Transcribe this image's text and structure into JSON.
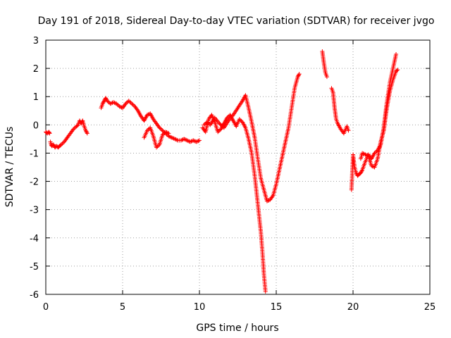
{
  "chart_data": {
    "type": "scatter",
    "title": "Day 191 of 2018, Sidereal Day-to-day VTEC variation (SDTVAR) for receiver jvgo",
    "xlabel": "GPS time / hours",
    "ylabel": "SDTVAR / TECUs",
    "xlim": [
      0,
      25
    ],
    "ylim": [
      -6,
      3
    ],
    "xticks": [
      0,
      5,
      10,
      15,
      20,
      25
    ],
    "yticks": [
      -6,
      -5,
      -4,
      -3,
      -2,
      -1,
      0,
      1,
      2,
      3
    ],
    "xtick_labels": [
      "0",
      "5",
      "10",
      "15",
      "20",
      "25"
    ],
    "ytick_labels": [
      "-6",
      "-5",
      "-4",
      "-3",
      "-2",
      "-1",
      "0",
      "1",
      "2",
      "3"
    ],
    "grid": true,
    "marker": "+",
    "color": "#ff0000",
    "series": [
      {
        "name": "seg1",
        "x": [
          0.0,
          0.1,
          0.2,
          0.25
        ],
        "y": [
          -0.25,
          -0.3,
          -0.25,
          -0.3
        ]
      },
      {
        "name": "seg2",
        "x": [
          0.3,
          0.35,
          0.4,
          0.5,
          0.6,
          0.7,
          0.8,
          0.9,
          1.0,
          1.2,
          1.4,
          1.6,
          1.8,
          2.0,
          2.1,
          2.2,
          2.3,
          2.4,
          2.5,
          2.6,
          2.7
        ],
        "y": [
          -0.6,
          -0.7,
          -0.75,
          -0.7,
          -0.8,
          -0.75,
          -0.8,
          -0.75,
          -0.7,
          -0.6,
          -0.45,
          -0.3,
          -0.15,
          -0.05,
          0.0,
          0.15,
          0.05,
          0.15,
          -0.05,
          -0.2,
          -0.3
        ]
      },
      {
        "name": "seg3",
        "x": [
          3.6,
          3.7,
          3.8,
          3.9,
          4.0,
          4.2,
          4.4,
          4.6,
          4.8,
          5.0,
          5.2,
          5.4,
          5.6,
          5.8,
          6.0,
          6.2,
          6.4,
          6.6,
          6.8,
          7.0,
          7.2,
          7.4,
          7.6,
          7.8,
          8.0,
          8.2,
          8.4,
          8.6,
          8.8,
          9.0,
          9.2,
          9.4,
          9.6,
          9.8,
          10.0
        ],
        "y": [
          0.6,
          0.75,
          0.85,
          0.95,
          0.85,
          0.75,
          0.8,
          0.75,
          0.65,
          0.6,
          0.75,
          0.85,
          0.75,
          0.65,
          0.5,
          0.3,
          0.15,
          0.35,
          0.4,
          0.2,
          0.05,
          -0.1,
          -0.2,
          -0.3,
          -0.4,
          -0.45,
          -0.5,
          -0.55,
          -0.55,
          -0.5,
          -0.55,
          -0.6,
          -0.55,
          -0.6,
          -0.55
        ]
      },
      {
        "name": "seg4",
        "x": [
          6.4,
          6.6,
          6.8,
          7.0,
          7.2,
          7.4,
          7.6,
          7.8,
          8.0
        ],
        "y": [
          -0.45,
          -0.2,
          -0.1,
          -0.4,
          -0.8,
          -0.7,
          -0.35,
          -0.25,
          -0.3
        ]
      },
      {
        "name": "seg5",
        "x": [
          10.2,
          10.4,
          10.6,
          10.8,
          11.0,
          11.2,
          11.4,
          11.6,
          11.8,
          12.0,
          12.2,
          12.4,
          12.6,
          12.8,
          13.0,
          13.2,
          13.4,
          13.6,
          13.8,
          14.0,
          14.1,
          14.2,
          14.3
        ],
        "y": [
          -0.1,
          -0.25,
          0.2,
          0.35,
          0.1,
          -0.25,
          -0.15,
          0.05,
          0.25,
          0.35,
          0.15,
          -0.05,
          0.2,
          0.1,
          -0.1,
          -0.5,
          -1.0,
          -1.8,
          -2.8,
          -3.8,
          -4.5,
          -5.3,
          -5.9
        ]
      },
      {
        "name": "seg6",
        "x": [
          10.3,
          10.5,
          10.7,
          11.0,
          11.3,
          11.6,
          11.9,
          12.2,
          12.5,
          12.8,
          13.0,
          13.2,
          13.4,
          13.6,
          13.8,
          14.0,
          14.2,
          14.4,
          14.6,
          14.8,
          15.0,
          15.2,
          15.4,
          15.6,
          15.8,
          16.0,
          16.2,
          16.4,
          16.5
        ],
        "y": [
          0.0,
          0.1,
          0.0,
          0.25,
          0.05,
          -0.1,
          0.15,
          0.35,
          0.6,
          0.85,
          1.05,
          0.6,
          0.1,
          -0.45,
          -1.2,
          -1.9,
          -2.3,
          -2.7,
          -2.65,
          -2.5,
          -2.1,
          -1.6,
          -1.1,
          -0.6,
          -0.1,
          0.6,
          1.3,
          1.7,
          1.8
        ]
      },
      {
        "name": "seg7",
        "x": [
          18.0,
          18.1,
          18.2,
          18.3
        ],
        "y": [
          2.6,
          2.2,
          1.85,
          1.7
        ]
      },
      {
        "name": "seg8",
        "x": [
          18.6,
          18.7,
          18.8,
          18.9,
          19.0,
          19.2,
          19.4,
          19.6,
          19.7
        ],
        "y": [
          1.3,
          1.15,
          0.6,
          0.2,
          0.05,
          -0.15,
          -0.3,
          -0.05,
          -0.2
        ]
      },
      {
        "name": "seg9",
        "x": [
          19.9,
          20.0,
          20.1,
          20.2,
          20.3,
          20.4,
          20.5,
          20.6,
          20.8,
          21.0,
          21.2,
          21.4,
          21.6,
          21.8,
          22.0,
          22.2,
          22.4,
          22.6,
          22.8
        ],
        "y": [
          -2.3,
          -1.05,
          -1.5,
          -1.7,
          -1.8,
          -1.75,
          -1.7,
          -1.6,
          -1.3,
          -1.05,
          -1.2,
          -1.0,
          -0.9,
          -0.7,
          -0.1,
          0.8,
          1.5,
          2.0,
          2.5
        ]
      },
      {
        "name": "seg10",
        "x": [
          20.5,
          20.6,
          20.8,
          21.0,
          21.2,
          21.4,
          21.6,
          21.8,
          22.0,
          22.2,
          22.4,
          22.6,
          22.8,
          22.9
        ],
        "y": [
          -1.2,
          -1.0,
          -1.05,
          -1.1,
          -1.45,
          -1.5,
          -1.2,
          -0.6,
          -0.2,
          0.6,
          1.2,
          1.6,
          1.9,
          1.95
        ]
      }
    ]
  }
}
